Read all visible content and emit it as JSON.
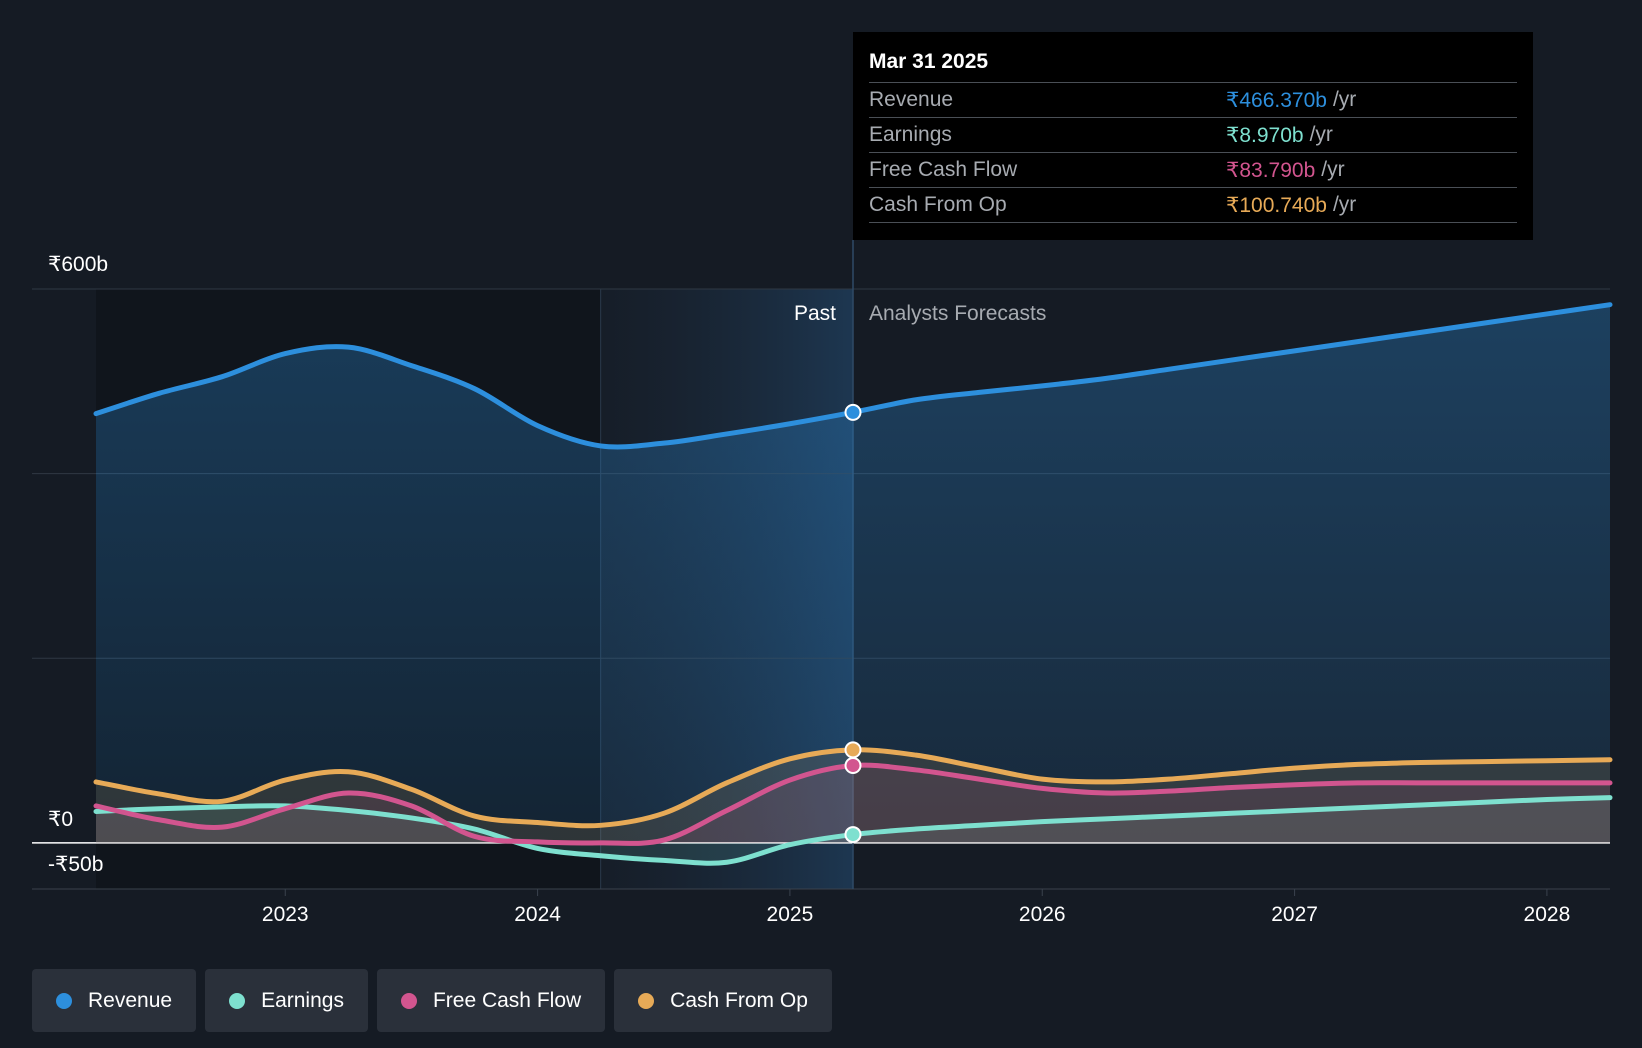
{
  "chart_data": {
    "type": "line",
    "y_axis": {
      "max_label": "₹600b",
      "zero_label": "₹0",
      "min_label": "-₹50b",
      "ylim": [
        -50,
        600
      ]
    },
    "x_ticks": [
      "2023",
      "2024",
      "2025",
      "2026",
      "2027",
      "2028"
    ],
    "x_tick_values": [
      2023.0,
      2024.0,
      2025.0,
      2026.0,
      2027.0,
      2028.0
    ],
    "xlim": [
      2022.0,
      2028.25
    ],
    "past_label": "Past",
    "forecast_label": "Analysts Forecasts",
    "past_start": 2024.25,
    "divider_x": 2025.25,
    "series": [
      {
        "name": "Revenue",
        "color": "#2d8fdd",
        "points": [
          [
            2022.25,
            465
          ],
          [
            2022.5,
            487
          ],
          [
            2022.75,
            505
          ],
          [
            2023.0,
            530
          ],
          [
            2023.25,
            537
          ],
          [
            2023.5,
            517
          ],
          [
            2023.75,
            492
          ],
          [
            2024.0,
            452
          ],
          [
            2024.25,
            430
          ],
          [
            2024.5,
            433
          ],
          [
            2024.75,
            443
          ],
          [
            2025.0,
            454
          ],
          [
            2025.25,
            466.37
          ],
          [
            2025.5,
            480
          ],
          [
            2025.75,
            488
          ],
          [
            2026.0,
            495
          ],
          [
            2026.25,
            503
          ],
          [
            2026.5,
            513
          ],
          [
            2026.75,
            523
          ],
          [
            2027.0,
            533
          ],
          [
            2027.25,
            543
          ],
          [
            2027.5,
            553
          ],
          [
            2027.75,
            563
          ],
          [
            2028.0,
            573
          ],
          [
            2028.25,
            583
          ]
        ]
      },
      {
        "name": "Earnings",
        "color": "#7ee0cf",
        "points": [
          [
            2022.25,
            34
          ],
          [
            2022.5,
            37
          ],
          [
            2022.75,
            39
          ],
          [
            2023.0,
            40
          ],
          [
            2023.25,
            35
          ],
          [
            2023.5,
            27
          ],
          [
            2023.75,
            15
          ],
          [
            2024.0,
            -6
          ],
          [
            2024.25,
            -14
          ],
          [
            2024.5,
            -19
          ],
          [
            2024.75,
            -21
          ],
          [
            2025.0,
            -2
          ],
          [
            2025.25,
            8.97
          ],
          [
            2025.5,
            15
          ],
          [
            2025.75,
            19
          ],
          [
            2026.0,
            23
          ],
          [
            2026.25,
            26
          ],
          [
            2026.5,
            29
          ],
          [
            2026.75,
            32
          ],
          [
            2027.0,
            35
          ],
          [
            2027.25,
            38
          ],
          [
            2027.5,
            41
          ],
          [
            2027.75,
            44
          ],
          [
            2028.0,
            47
          ],
          [
            2028.25,
            49
          ]
        ]
      },
      {
        "name": "Free Cash Flow",
        "color": "#d2558f",
        "points": [
          [
            2022.25,
            40
          ],
          [
            2022.5,
            25
          ],
          [
            2022.75,
            17
          ],
          [
            2023.0,
            37
          ],
          [
            2023.25,
            54
          ],
          [
            2023.5,
            40
          ],
          [
            2023.75,
            7
          ],
          [
            2024.0,
            1
          ],
          [
            2024.25,
            0
          ],
          [
            2024.5,
            3
          ],
          [
            2024.75,
            35
          ],
          [
            2025.0,
            68
          ],
          [
            2025.25,
            83.79
          ],
          [
            2025.5,
            79
          ],
          [
            2025.75,
            69
          ],
          [
            2026.0,
            59
          ],
          [
            2026.25,
            54
          ],
          [
            2026.5,
            56
          ],
          [
            2026.75,
            60
          ],
          [
            2027.0,
            63
          ],
          [
            2027.25,
            65
          ],
          [
            2027.5,
            65
          ],
          [
            2027.75,
            65
          ],
          [
            2028.0,
            65
          ],
          [
            2028.25,
            65
          ]
        ]
      },
      {
        "name": "Cash From Op",
        "color": "#e7aa57",
        "points": [
          [
            2022.25,
            66
          ],
          [
            2022.5,
            53
          ],
          [
            2022.75,
            45
          ],
          [
            2023.0,
            68
          ],
          [
            2023.25,
            77
          ],
          [
            2023.5,
            58
          ],
          [
            2023.75,
            29
          ],
          [
            2024.0,
            22
          ],
          [
            2024.25,
            19
          ],
          [
            2024.5,
            32
          ],
          [
            2024.75,
            65
          ],
          [
            2025.0,
            91
          ],
          [
            2025.25,
            100.74
          ],
          [
            2025.5,
            95
          ],
          [
            2025.75,
            82
          ],
          [
            2026.0,
            69
          ],
          [
            2026.25,
            66
          ],
          [
            2026.5,
            69
          ],
          [
            2026.75,
            75
          ],
          [
            2027.0,
            81
          ],
          [
            2027.25,
            85
          ],
          [
            2027.5,
            87
          ],
          [
            2027.75,
            88
          ],
          [
            2028.0,
            89
          ],
          [
            2028.25,
            90
          ]
        ]
      }
    ]
  },
  "tooltip": {
    "date": "Mar 31 2025",
    "rows": [
      {
        "name": "Revenue",
        "value": "₹466.370b",
        "unit": "/yr",
        "color": "#2d8fdd"
      },
      {
        "name": "Earnings",
        "value": "₹8.970b",
        "unit": "/yr",
        "color": "#7ee0cf"
      },
      {
        "name": "Free Cash Flow",
        "value": "₹83.790b",
        "unit": "/yr",
        "color": "#d2558f"
      },
      {
        "name": "Cash From Op",
        "value": "₹100.740b",
        "unit": "/yr",
        "color": "#e7aa57"
      }
    ]
  },
  "legend": [
    {
      "label": "Revenue",
      "color": "#2d8fdd"
    },
    {
      "label": "Earnings",
      "color": "#7ee0cf"
    },
    {
      "label": "Free Cash Flow",
      "color": "#d2558f"
    },
    {
      "label": "Cash From Op",
      "color": "#e7aa57"
    }
  ]
}
